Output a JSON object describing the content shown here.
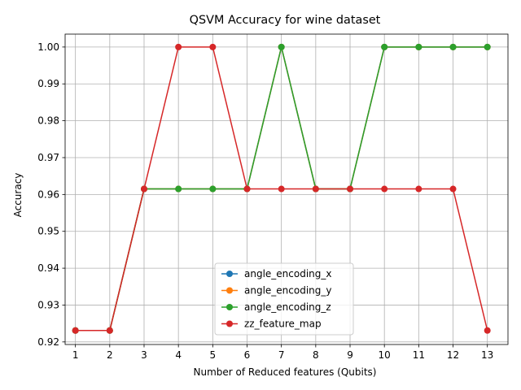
{
  "chart_data": {
    "type": "line",
    "title": "QSVM Accuracy for wine dataset",
    "xlabel": "Number of Reduced features (Qubits)",
    "ylabel": "Accuracy",
    "x": [
      1,
      2,
      3,
      4,
      5,
      6,
      7,
      8,
      9,
      10,
      11,
      12,
      13
    ],
    "xticks": [
      "1",
      "2",
      "3",
      "4",
      "5",
      "6",
      "7",
      "8",
      "9",
      "10",
      "11",
      "12",
      "13"
    ],
    "yticks": [
      "0.92",
      "0.93",
      "0.94",
      "0.95",
      "0.96",
      "0.97",
      "0.98",
      "0.99",
      "1.00"
    ],
    "ytick_values": [
      0.92,
      0.93,
      0.94,
      0.95,
      0.96,
      0.97,
      0.98,
      0.99,
      1.0
    ],
    "xlim": [
      0.7,
      13.6
    ],
    "ylim": [
      0.9193,
      1.0035
    ],
    "grid": true,
    "legend_position": "lower-center",
    "series": [
      {
        "name": "angle_encoding_x",
        "color": "#1f77b4",
        "values": [
          0.9231,
          0.9231,
          0.9615,
          0.9615,
          0.9615,
          0.9615,
          1.0,
          0.9615,
          0.9615,
          1.0,
          1.0,
          1.0,
          1.0
        ]
      },
      {
        "name": "angle_encoding_y",
        "color": "#ff7f0e",
        "values": [
          0.9231,
          0.9231,
          0.9615,
          0.9615,
          0.9615,
          0.9615,
          1.0,
          0.9615,
          0.9615,
          1.0,
          1.0,
          1.0,
          1.0
        ]
      },
      {
        "name": "angle_encoding_z",
        "color": "#2ca02c",
        "values": [
          0.9231,
          0.9231,
          0.9615,
          0.9615,
          0.9615,
          0.9615,
          1.0,
          0.9615,
          0.9615,
          1.0,
          1.0,
          1.0,
          1.0
        ]
      },
      {
        "name": "zz_feature_map",
        "color": "#d62728",
        "values": [
          0.9231,
          0.9231,
          0.9615,
          1.0,
          1.0,
          0.9615,
          0.9615,
          0.9615,
          0.9615,
          0.9615,
          0.9615,
          0.9615,
          0.9231
        ]
      }
    ]
  }
}
